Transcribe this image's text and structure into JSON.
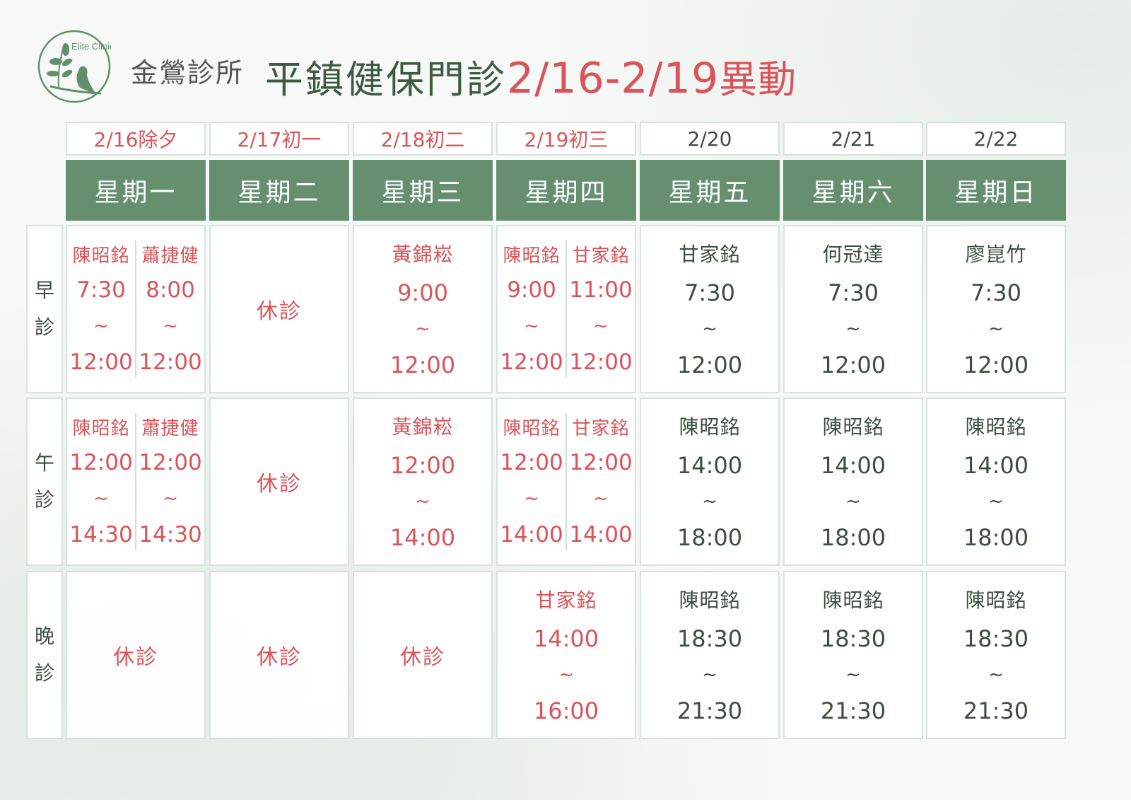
{
  "logo": {
    "text": "Elite Clinic",
    "color": "#5f8f6b"
  },
  "header": {
    "clinic": "金鶯診所",
    "title": "平鎮健保門診",
    "range": "2/16-2/19",
    "suffix": "異動"
  },
  "colors": {
    "changed": "#d9545a",
    "normal": "#3d4d3f",
    "header_bg": "#668f70"
  },
  "sessions": [
    {
      "label": [
        "早",
        "診"
      ]
    },
    {
      "label": [
        "午",
        "診"
      ]
    },
    {
      "label": [
        "晚",
        "診"
      ]
    }
  ],
  "tilde": "~",
  "closed_label": "休診",
  "days": [
    {
      "date": "2/16除夕",
      "weekday": "星期一",
      "changed": true,
      "slots": [
        [
          {
            "doctor": "陳昭銘",
            "start": "7:30",
            "end": "12:00"
          },
          {
            "doctor": "蕭捷健",
            "start": "8:00",
            "end": "12:00"
          }
        ],
        [
          {
            "doctor": "陳昭銘",
            "start": "12:00",
            "end": "14:30"
          },
          {
            "doctor": "蕭捷健",
            "start": "12:00",
            "end": "14:30"
          }
        ],
        []
      ]
    },
    {
      "date": "2/17初一",
      "weekday": "星期二",
      "changed": true,
      "slots": [
        [],
        [],
        []
      ]
    },
    {
      "date": "2/18初二",
      "weekday": "星期三",
      "changed": true,
      "slots": [
        [
          {
            "doctor": "黃錦崧",
            "start": "9:00",
            "end": "12:00"
          }
        ],
        [
          {
            "doctor": "黃錦崧",
            "start": "12:00",
            "end": "14:00"
          }
        ],
        []
      ]
    },
    {
      "date": "2/19初三",
      "weekday": "星期四",
      "changed": true,
      "slots": [
        [
          {
            "doctor": "陳昭銘",
            "start": "9:00",
            "end": "12:00"
          },
          {
            "doctor": "甘家銘",
            "start": "11:00",
            "end": "12:00"
          }
        ],
        [
          {
            "doctor": "陳昭銘",
            "start": "12:00",
            "end": "14:00"
          },
          {
            "doctor": "甘家銘",
            "start": "12:00",
            "end": "14:00"
          }
        ],
        [
          {
            "doctor": "甘家銘",
            "start": "14:00",
            "end": "16:00"
          }
        ]
      ]
    },
    {
      "date": "2/20",
      "weekday": "星期五",
      "changed": false,
      "slots": [
        [
          {
            "doctor": "甘家銘",
            "start": "7:30",
            "end": "12:00"
          }
        ],
        [
          {
            "doctor": "陳昭銘",
            "start": "14:00",
            "end": "18:00"
          }
        ],
        [
          {
            "doctor": "陳昭銘",
            "start": "18:30",
            "end": "21:30"
          }
        ]
      ]
    },
    {
      "date": "2/21",
      "weekday": "星期六",
      "changed": false,
      "slots": [
        [
          {
            "doctor": "何冠達",
            "start": "7:30",
            "end": "12:00"
          }
        ],
        [
          {
            "doctor": "陳昭銘",
            "start": "14:00",
            "end": "18:00"
          }
        ],
        [
          {
            "doctor": "陳昭銘",
            "start": "18:30",
            "end": "21:30"
          }
        ]
      ]
    },
    {
      "date": "2/22",
      "weekday": "星期日",
      "changed": false,
      "slots": [
        [
          {
            "doctor": "廖崑竹",
            "start": "7:30",
            "end": "12:00"
          }
        ],
        [
          {
            "doctor": "陳昭銘",
            "start": "14:00",
            "end": "18:00"
          }
        ],
        [
          {
            "doctor": "陳昭銘",
            "start": "18:30",
            "end": "21:30"
          }
        ]
      ]
    }
  ]
}
